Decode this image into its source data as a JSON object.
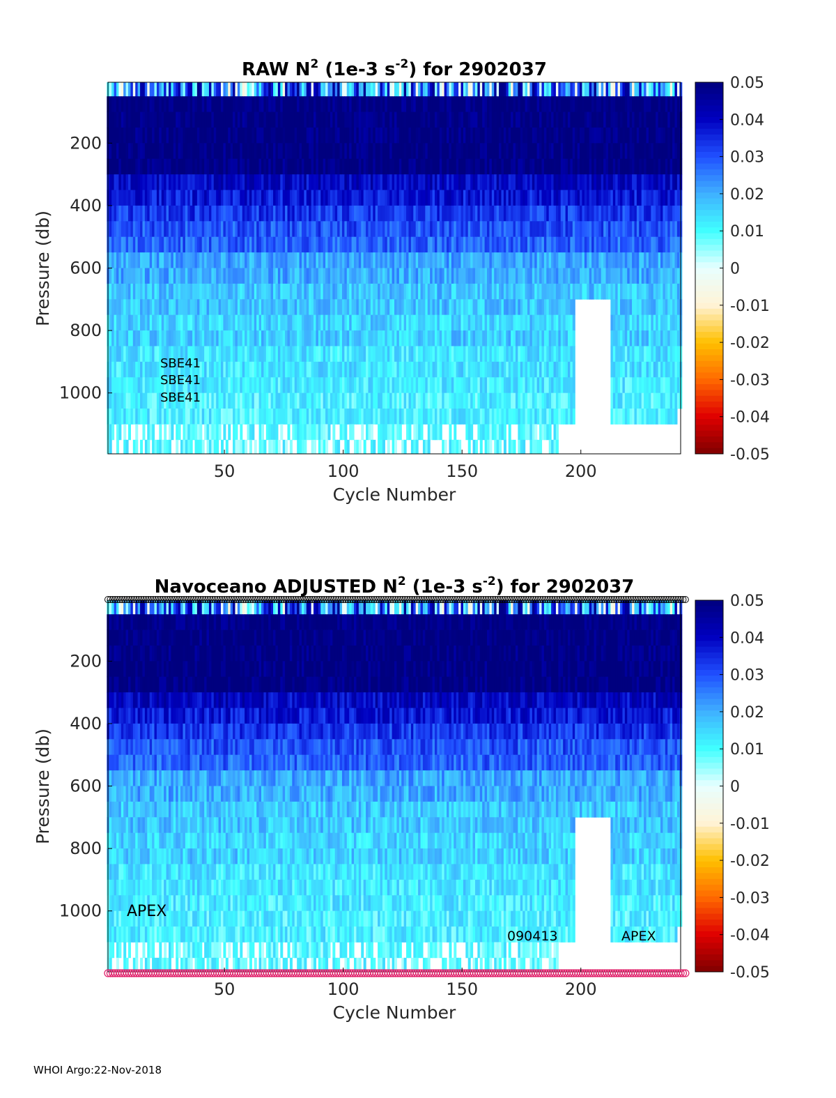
{
  "chart_data": [
    {
      "type": "heatmap",
      "title_main": "RAW N",
      "title_exp": "2",
      "title_units_pre": " (1e-3 s",
      "title_units_exp": "-2",
      "title_post": ") for 2902037",
      "xlabel": "Cycle Number",
      "ylabel": "Pressure (db)",
      "xlim": [
        1,
        242
      ],
      "ylim": [
        1195,
        5
      ],
      "xticks": [
        50,
        100,
        150,
        200
      ],
      "yticks": [
        200,
        400,
        600,
        800,
        1000
      ],
      "clim": [
        -0.05,
        0.05
      ],
      "colorbar_ticks": [
        "0.05",
        "0.04",
        "0.03",
        "0.02",
        "0.01",
        "0",
        "-0.01",
        "-0.02",
        "-0.03",
        "-0.04",
        "-0.05"
      ],
      "annotations": [
        "SBE41",
        "SBE41",
        "SBE41"
      ],
      "marker_rows": false
    },
    {
      "type": "heatmap",
      "title_main": "Navoceano  ADJUSTED N",
      "title_exp": "2",
      "title_units_pre": " (1e-3 s",
      "title_units_exp": "-2",
      "title_post": ") for 2902037",
      "xlabel": "Cycle Number",
      "ylabel": "Pressure (db)",
      "xlim": [
        1,
        242
      ],
      "ylim": [
        1195,
        5
      ],
      "xticks": [
        50,
        100,
        150,
        200
      ],
      "yticks": [
        200,
        400,
        600,
        800,
        1000
      ],
      "clim": [
        -0.05,
        0.05
      ],
      "colorbar_ticks": [
        "0.05",
        "0.04",
        "0.03",
        "0.02",
        "0.01",
        "0",
        "-0.01",
        "-0.02",
        "-0.03",
        "-0.04",
        "-0.05"
      ],
      "annotations": [
        "APEX",
        "090413",
        "APEX"
      ],
      "marker_rows": true,
      "top_marker_color": "#000000",
      "bottom_marker_color": "#e0206a"
    }
  ],
  "depth_profile": {
    "pressure_levels": [
      25,
      75,
      125,
      175,
      225,
      275,
      325,
      375,
      425,
      475,
      525,
      575,
      625,
      675,
      725,
      775,
      825,
      875,
      925,
      975,
      1025,
      1075,
      1125,
      1175
    ],
    "mean_n2": [
      0.035,
      0.05,
      0.05,
      0.05,
      0.05,
      0.05,
      0.04,
      0.037,
      0.033,
      0.03,
      0.028,
      0.021,
      0.02,
      0.017,
      0.017,
      0.015,
      0.016,
      0.013,
      0.013,
      0.012,
      0.011,
      0.011,
      0.009,
      0.009
    ],
    "max_cycle_by_level": [
      242,
      242,
      242,
      242,
      242,
      242,
      242,
      242,
      242,
      242,
      242,
      242,
      242,
      242,
      242,
      242,
      242,
      242,
      242,
      242,
      242,
      240,
      193,
      190
    ]
  },
  "colors": {
    "colormap": [
      "#7f0000",
      "#e00000",
      "#ff6a00",
      "#ffc000",
      "#fff3d6",
      "#e8ffff",
      "#40ffff",
      "#3fb0ff",
      "#2050ff",
      "#0000c0",
      "#00007f"
    ]
  },
  "footer": "WHOI Argo:22-Nov-2018"
}
